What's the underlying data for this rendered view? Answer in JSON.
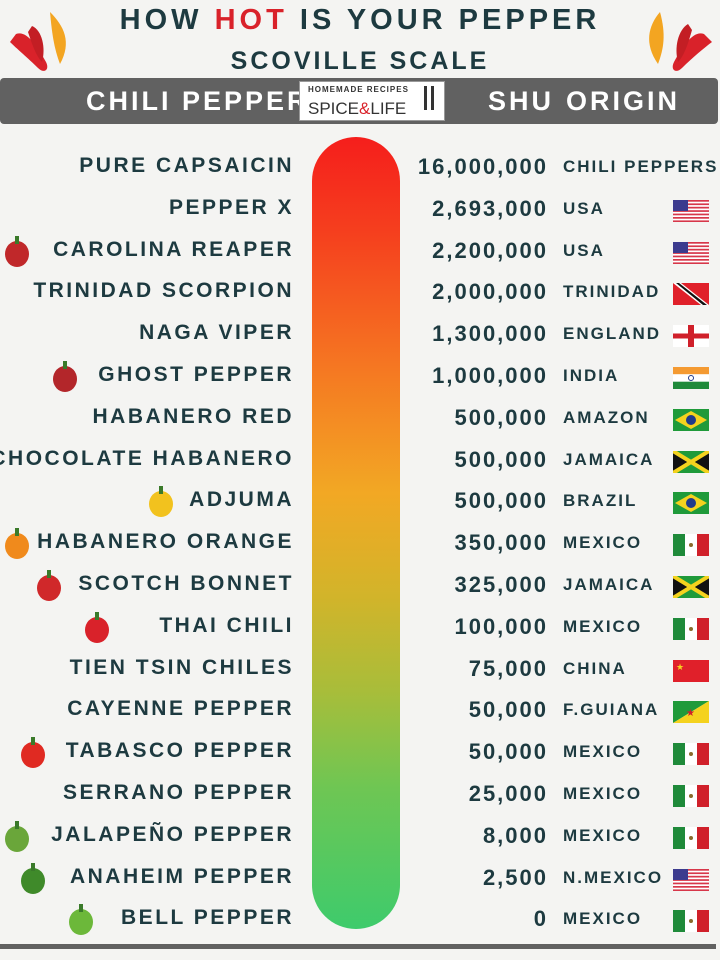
{
  "header": {
    "title_pre": "HOW ",
    "title_hot": "HOT",
    "title_post": " IS YOUR PEPPER",
    "subtitle": "SCOVILLE SCALE",
    "col_pepper": "CHILI PEPPER",
    "col_shu": "SHU",
    "col_origin": "ORIGIN",
    "logo_top": "HOMEMADE RECIPES",
    "logo_a": "SPICE",
    "logo_amp": "&",
    "logo_b": "LIFE"
  },
  "colors": {
    "text": "#1d3a40",
    "hot": "#d9222a",
    "band": "#616161",
    "scale_top": "#f51e1c",
    "scale_bottom": "#3ecb6c"
  },
  "rows": [
    {
      "name": "PURE CAPSAICIN",
      "shu": "16,000,000",
      "origin": "CHILI PEPPERS",
      "flag": ""
    },
    {
      "name": "PEPPER X",
      "shu": "2,693,000",
      "origin": "USA",
      "flag": "us"
    },
    {
      "name": "CAROLINA REAPER",
      "shu": "2,200,000",
      "origin": "USA",
      "flag": "us",
      "pepper": "#c0282a"
    },
    {
      "name": "TRINIDAD SCORPION",
      "shu": "2,000,000",
      "origin": "TRINIDAD",
      "flag": "tt"
    },
    {
      "name": "NAGA VIPER",
      "shu": "1,300,000",
      "origin": "ENGLAND",
      "flag": "en"
    },
    {
      "name": "GHOST PEPPER",
      "shu": "1,000,000",
      "origin": "INDIA",
      "flag": "in",
      "pepper": "#b3262a"
    },
    {
      "name": "HABANERO RED",
      "shu": "500,000",
      "origin": "AMAZON",
      "flag": "br"
    },
    {
      "name": "CHOCOLATE HABANERO",
      "shu": "500,000",
      "origin": "JAMAICA",
      "flag": "jm"
    },
    {
      "name": "ADJUMA",
      "shu": "500,000",
      "origin": "BRAZIL",
      "flag": "br",
      "pepper": "#f2c21e"
    },
    {
      "name": "HABANERO ORANGE",
      "shu": "350,000",
      "origin": "MEXICO",
      "flag": "mx",
      "pepper": "#f08a1c"
    },
    {
      "name": "SCOTCH BONNET",
      "shu": "325,000",
      "origin": "JAMAICA",
      "flag": "jm",
      "pepper": "#d0282a"
    },
    {
      "name": "THAI CHILI",
      "shu": "100,000",
      "origin": "MEXICO",
      "flag": "mx",
      "pepper": "#d9222a"
    },
    {
      "name": "TIEN TSIN CHILES",
      "shu": "75,000",
      "origin": "CHINA",
      "flag": "cn"
    },
    {
      "name": "CAYENNE PEPPER",
      "shu": "50,000",
      "origin": "F.GUIANA",
      "flag": "gf"
    },
    {
      "name": "TABASCO PEPPER",
      "shu": "50,000",
      "origin": "MEXICO",
      "flag": "mx",
      "pepper": "#e02a22"
    },
    {
      "name": "SERRANO PEPPER",
      "shu": "25,000",
      "origin": "MEXICO",
      "flag": "mx"
    },
    {
      "name": "JALAPEÑO PEPPER",
      "shu": "8,000",
      "origin": "MEXICO",
      "flag": "mx",
      "pepper": "#6aa63a"
    },
    {
      "name": "ANAHEIM PEPPER",
      "shu": "2,500",
      "origin": "N.MEXICO",
      "flag": "us",
      "pepper": "#3f8a2a"
    },
    {
      "name": "BELL PEPPER",
      "shu": "0",
      "origin": "MEXICO",
      "flag": "mx",
      "pepper": "#6cb83a"
    }
  ]
}
